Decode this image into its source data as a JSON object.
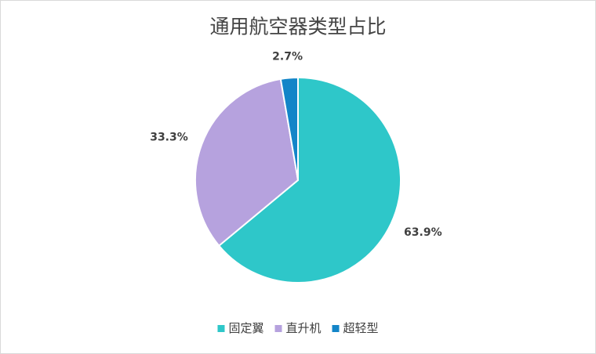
{
  "chart_data": {
    "type": "pie",
    "title": "通用航空器类型占比",
    "categories": [
      "固定翼",
      "直升机",
      "超轻型"
    ],
    "values": [
      63.9,
      33.3,
      2.7
    ],
    "value_labels": [
      "63.9%",
      "33.3%",
      "2.7%"
    ],
    "colors": [
      "#2ec7c9",
      "#b6a2de",
      "#1385c8"
    ],
    "legend": "bottom"
  }
}
